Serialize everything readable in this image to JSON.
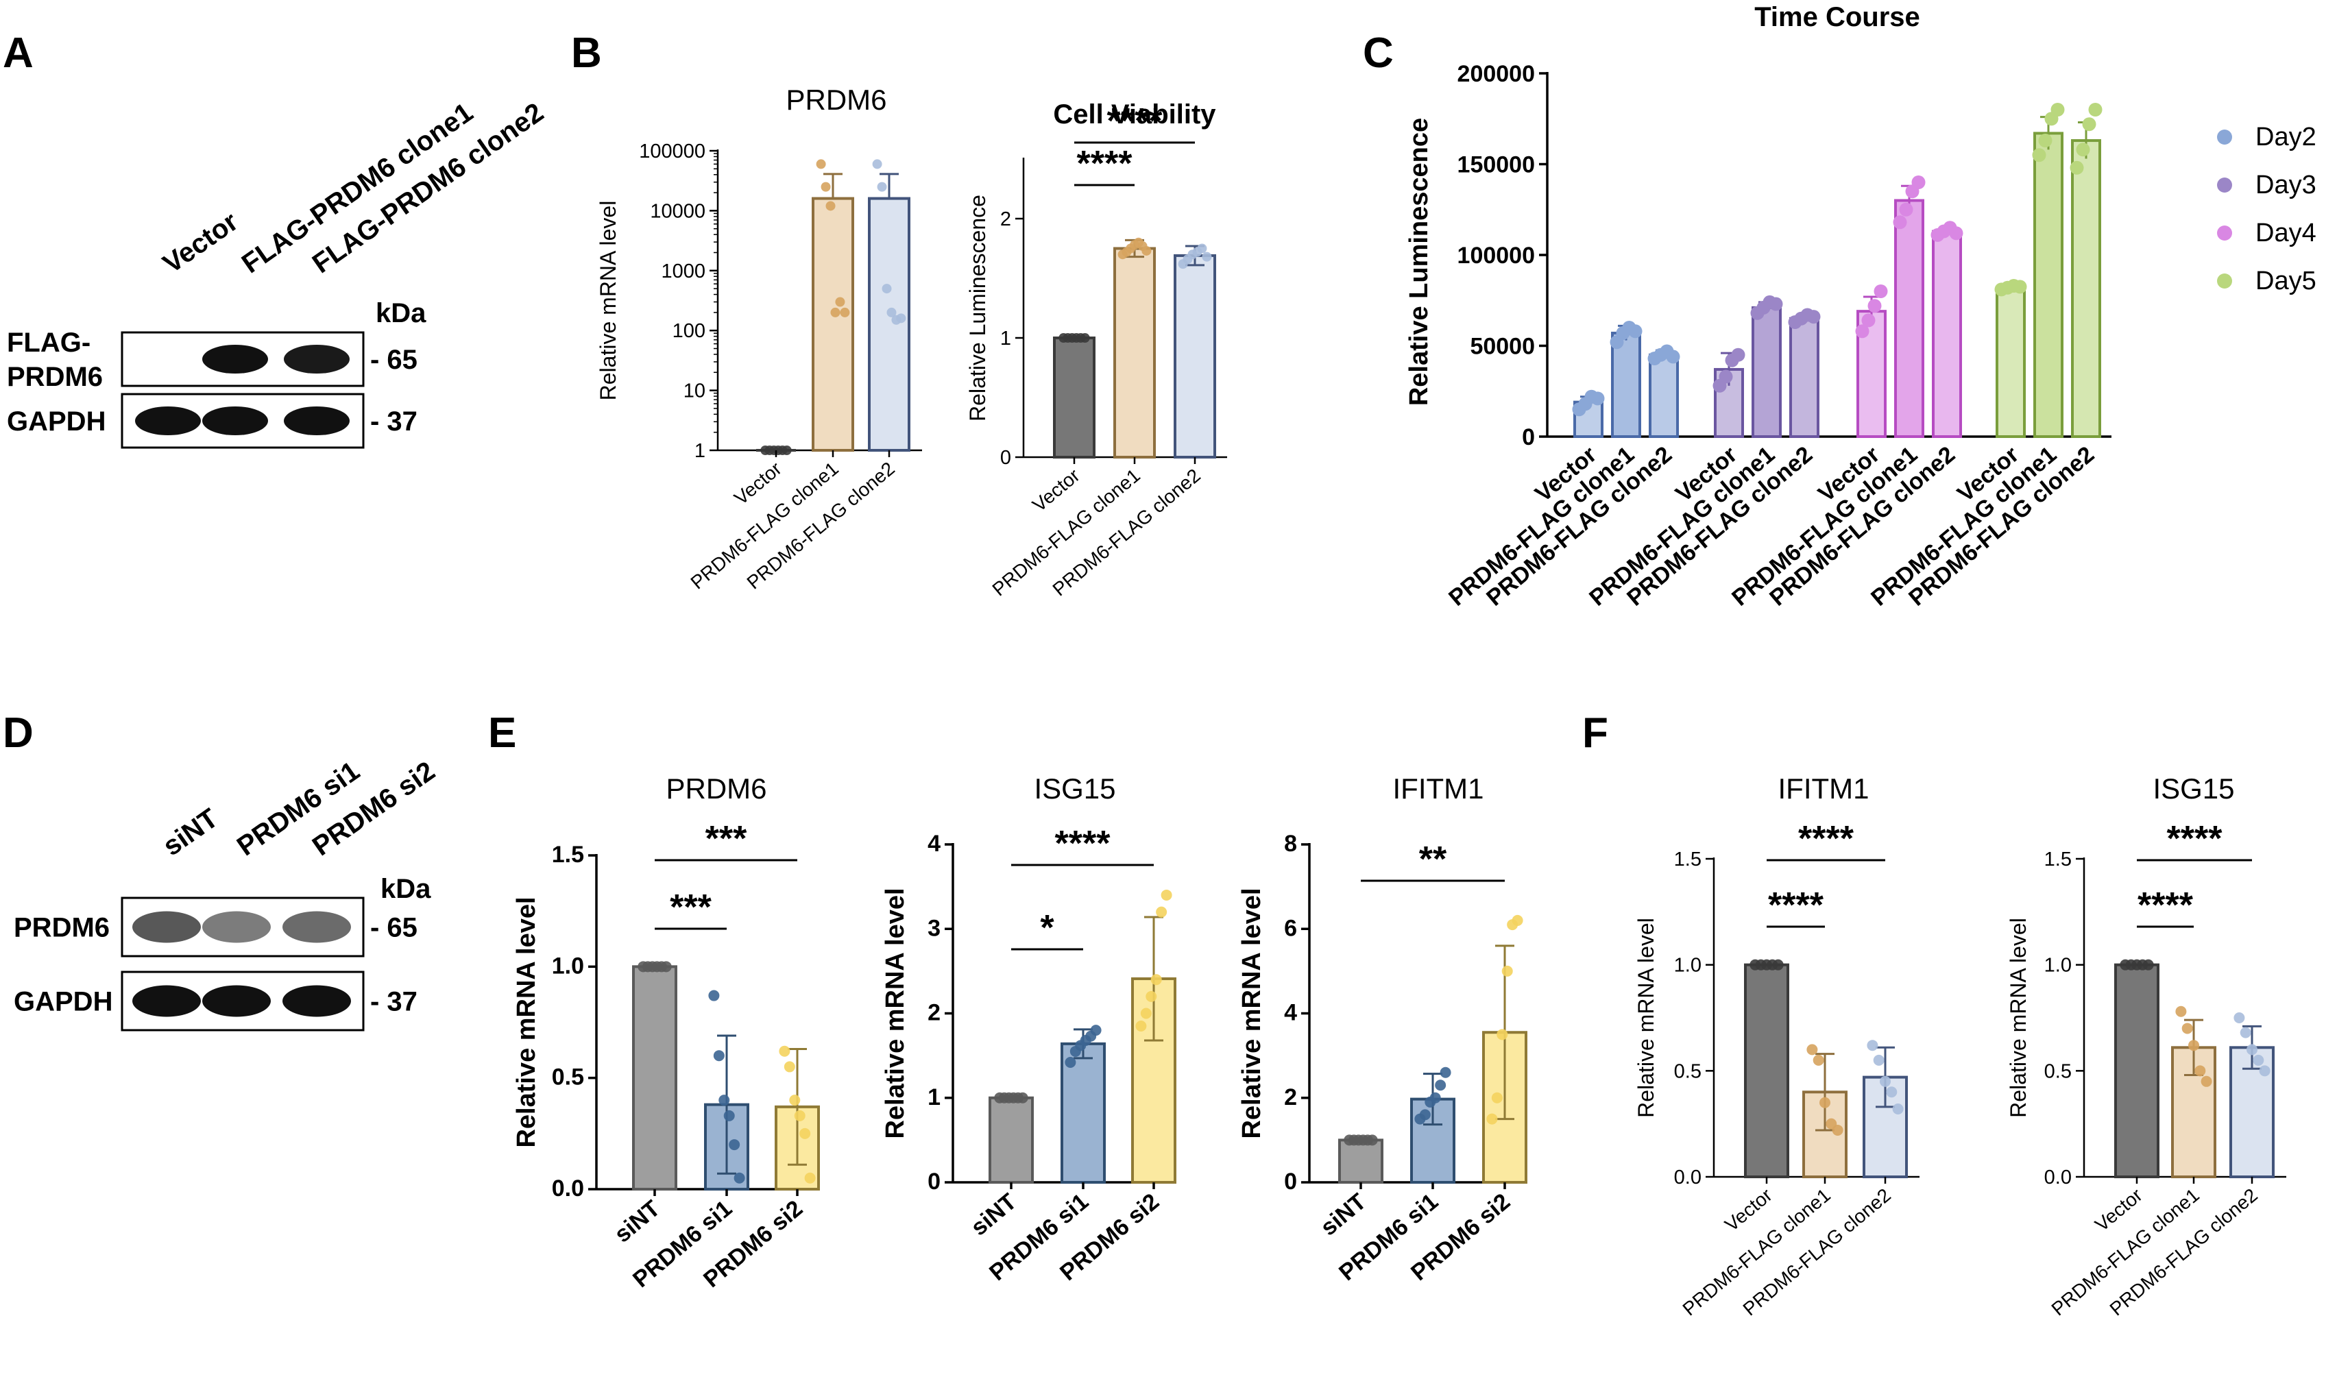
{
  "panels": {
    "A": "A",
    "B": "B",
    "C": "C",
    "D": "D",
    "E": "E",
    "F": "F"
  },
  "blot_A": {
    "lanes": [
      "Vector",
      "FLAG-PRDM6 clone1",
      "FLAG-PRDM6 clone2"
    ],
    "rows": [
      {
        "label": [
          "FLAG-",
          "PRDM6"
        ],
        "marker": "- 65",
        "intensity": [
          0,
          1,
          0.95
        ]
      },
      {
        "label": [
          "GAPDH"
        ],
        "marker": "- 37",
        "intensity": [
          1,
          1,
          1
        ]
      }
    ],
    "kda": "kDa"
  },
  "blot_D": {
    "lanes": [
      "siNT",
      "PRDM6 si1",
      "PRDM6 si2"
    ],
    "rows": [
      {
        "label": [
          "PRDM6"
        ],
        "marker": "- 65",
        "intensity": [
          0.6,
          0.4,
          0.5
        ]
      },
      {
        "label": [
          "GAPDH"
        ],
        "marker": "- 37",
        "intensity": [
          1,
          1,
          1
        ]
      }
    ],
    "kda": "kDa"
  },
  "colors": {
    "gray": "#8a8a8a",
    "tan": "#f0dcc0",
    "lightblue": "#dbe3f0",
    "tanedge": "#8e6f3e",
    "blueedge": "#42547b",
    "day2": "#8aa7d7",
    "day3": "#9b86c7",
    "day4": "#d987e3",
    "day5": "#b9d77d"
  },
  "chart_data": [
    {
      "id": "B1",
      "type": "bar",
      "scale": "log",
      "title": "PRDM6",
      "ylabel": "Relative mRNA level",
      "categories": [
        "Vector",
        "PRDM6-FLAG clone1",
        "PRDM6-FLAG clone2"
      ],
      "values": [
        1,
        16000,
        16000
      ],
      "errors": [
        0,
        25000,
        25000
      ],
      "points": [
        [
          1,
          1,
          1,
          1,
          1,
          1
        ],
        [
          60000,
          25000,
          12000,
          200,
          300,
          200
        ],
        [
          60000,
          25000,
          500,
          200,
          150,
          160
        ]
      ],
      "ylim": [
        1,
        100000
      ],
      "ticks": [
        1,
        10,
        100,
        1000,
        10000,
        100000
      ],
      "tick_labels": [
        "1",
        "10",
        "100",
        "1000",
        "10000",
        "100000"
      ],
      "sig": []
    },
    {
      "id": "B2",
      "type": "bar",
      "title": "Cell Viability",
      "ylabel": "Relative Luminescence",
      "categories": [
        "Vector",
        "PRDM6-FLAG clone1",
        "PRDM6-FLAG clone2"
      ],
      "values": [
        1,
        1.75,
        1.69
      ],
      "errors": [
        0,
        0.07,
        0.08
      ],
      "points": [
        [
          1,
          1,
          1,
          1,
          1,
          1
        ],
        [
          1.7,
          1.72,
          1.75,
          1.78,
          1.8,
          1.77,
          1.73
        ],
        [
          1.62,
          1.66,
          1.7,
          1.72,
          1.75,
          1.68
        ]
      ],
      "ylim": [
        0,
        2.5
      ],
      "ticks": [
        0,
        1,
        2
      ],
      "tick_labels": [
        "0",
        "1",
        "2"
      ],
      "sig": [
        {
          "from": 0,
          "to": 1,
          "label": "****",
          "level": 0
        },
        {
          "from": 0,
          "to": 2,
          "label": "****",
          "level": 1
        }
      ]
    },
    {
      "id": "C",
      "type": "grouped-bar",
      "title": "Time Course",
      "ylabel": "Relative Luminescence",
      "groups": [
        "Day2",
        "Day3",
        "Day4",
        "Day5"
      ],
      "categories": [
        "Vector",
        "PRDM6-FLAG clone1",
        "PRDM6-FLAG clone2"
      ],
      "series": [
        {
          "name": "Day2",
          "values": [
            19000,
            57000,
            45000
          ],
          "errors": [
            3000,
            4000,
            2500
          ],
          "points": [
            [
              15000,
              18000,
              22000,
              21000
            ],
            [
              52000,
              57000,
              60000,
              58000
            ],
            [
              43000,
              45000,
              47000,
              44000
            ]
          ]
        },
        {
          "name": "Day3",
          "values": [
            37000,
            71000,
            65000
          ],
          "errors": [
            9000,
            3000,
            2000
          ],
          "points": [
            [
              28000,
              33000,
              42000,
              45000
            ],
            [
              68000,
              71000,
              74000,
              73000
            ],
            [
              63000,
              65000,
              67000,
              66000
            ]
          ]
        },
        {
          "name": "Day4",
          "values": [
            69000,
            130000,
            113000
          ],
          "errors": [
            8000,
            8000,
            2000
          ],
          "points": [
            [
              58000,
              64000,
              72000,
              80000
            ],
            [
              118000,
              125000,
              135000,
              140000
            ],
            [
              111000,
              113000,
              115000,
              112000
            ]
          ]
        },
        {
          "name": "Day5",
          "values": [
            82000,
            167000,
            163000
          ],
          "errors": [
            1500,
            9000,
            10000
          ],
          "points": [
            [
              81000,
              82000,
              83000,
              82500
            ],
            [
              155000,
              163000,
              175000,
              180000
            ],
            [
              148000,
              158000,
              172000,
              180000
            ]
          ]
        }
      ],
      "ylim": [
        0,
        200000
      ],
      "ticks": [
        0,
        50000,
        100000,
        150000,
        200000
      ],
      "tick_labels": [
        "0",
        "50000",
        "100000",
        "150000",
        "200000"
      ],
      "legend": [
        "Day2",
        "Day3",
        "Day4",
        "Day5"
      ]
    },
    {
      "id": "E1",
      "type": "bar",
      "title": "PRDM6",
      "ylabel": "Relative mRNA level",
      "categories": [
        "siNT",
        "PRDM6 si1",
        "PRDM6 si2"
      ],
      "values": [
        1.0,
        0.38,
        0.37
      ],
      "errors": [
        0,
        0.31,
        0.26
      ],
      "points": [
        [
          1,
          1,
          1,
          1,
          1,
          1
        ],
        [
          0.87,
          0.6,
          0.4,
          0.33,
          0.2,
          0.05
        ],
        [
          0.62,
          0.55,
          0.4,
          0.33,
          0.25,
          0.05
        ]
      ],
      "ylim": [
        0,
        1.5
      ],
      "ticks": [
        0,
        0.5,
        1.0,
        1.5
      ],
      "tick_labels": [
        "0.0",
        "0.5",
        "1.0",
        "1.5"
      ],
      "sig": [
        {
          "from": 0,
          "to": 1,
          "label": "***",
          "level": 0
        },
        {
          "from": 0,
          "to": 2,
          "label": "***",
          "level": 1
        }
      ]
    },
    {
      "id": "E2",
      "type": "bar",
      "title": "ISG15",
      "ylabel": "Relative mRNA level",
      "categories": [
        "siNT",
        "PRDM6 si1",
        "PRDM6 si2"
      ],
      "values": [
        1,
        1.64,
        2.41
      ],
      "errors": [
        0,
        0.17,
        0.73
      ],
      "points": [
        [
          1,
          1,
          1,
          1,
          1,
          1
        ],
        [
          1.42,
          1.55,
          1.62,
          1.68,
          1.73,
          1.8
        ],
        [
          1.85,
          2.0,
          2.2,
          2.4,
          3.2,
          3.4
        ]
      ],
      "ylim": [
        0,
        4
      ],
      "ticks": [
        0,
        1,
        2,
        3,
        4
      ],
      "tick_labels": [
        "0",
        "1",
        "2",
        "3",
        "4"
      ],
      "sig": [
        {
          "from": 0,
          "to": 1,
          "label": "*",
          "level": 0
        },
        {
          "from": 0,
          "to": 2,
          "label": "****",
          "level": 1
        }
      ]
    },
    {
      "id": "E3",
      "type": "bar",
      "title": "IFITM1",
      "ylabel": "Relative mRNA level",
      "categories": [
        "siNT",
        "PRDM6 si1",
        "PRDM6 si2"
      ],
      "values": [
        1,
        1.97,
        3.55
      ],
      "errors": [
        0,
        0.6,
        2.05
      ],
      "points": [
        [
          1,
          1,
          1,
          1,
          1,
          1
        ],
        [
          1.5,
          1.6,
          1.9,
          2.0,
          2.3,
          2.6
        ],
        [
          1.5,
          2.0,
          3.5,
          5.0,
          6.1,
          6.2
        ]
      ],
      "ylim": [
        0,
        8
      ],
      "ticks": [
        0,
        2,
        4,
        6,
        8
      ],
      "tick_labels": [
        "0",
        "2",
        "4",
        "6",
        "8"
      ],
      "sig": [
        {
          "from": 0,
          "to": 2,
          "label": "**",
          "level": 1
        }
      ]
    },
    {
      "id": "F1",
      "type": "bar",
      "title": "IFITM1",
      "ylabel": "Relative mRNA level",
      "categories": [
        "Vector",
        "PRDM6-FLAG clone1",
        "PRDM6-FLAG clone2"
      ],
      "values": [
        1.0,
        0.4,
        0.47
      ],
      "errors": [
        0,
        0.18,
        0.14
      ],
      "points": [
        [
          1,
          1,
          1,
          1,
          1
        ],
        [
          0.6,
          0.55,
          0.35,
          0.25,
          0.22
        ],
        [
          0.62,
          0.55,
          0.45,
          0.4,
          0.32
        ]
      ],
      "ylim": [
        0,
        1.5
      ],
      "ticks": [
        0,
        0.5,
        1.0,
        1.5
      ],
      "tick_labels": [
        "0.0",
        "0.5",
        "1.0",
        "1.5"
      ],
      "sig": [
        {
          "from": 0,
          "to": 1,
          "label": "****",
          "level": 0
        },
        {
          "from": 0,
          "to": 2,
          "label": "****",
          "level": 1
        }
      ]
    },
    {
      "id": "F2",
      "type": "bar",
      "title": "ISG15",
      "ylabel": "Relative mRNA level",
      "categories": [
        "Vector",
        "PRDM6-FLAG clone1",
        "PRDM6-FLAG clone2"
      ],
      "values": [
        1.0,
        0.61,
        0.61
      ],
      "errors": [
        0,
        0.13,
        0.1
      ],
      "points": [
        [
          1,
          1,
          1,
          1,
          1
        ],
        [
          0.78,
          0.7,
          0.62,
          0.5,
          0.45
        ],
        [
          0.75,
          0.68,
          0.6,
          0.55,
          0.5
        ]
      ],
      "ylim": [
        0,
        1.5
      ],
      "ticks": [
        0,
        0.5,
        1.0,
        1.5
      ],
      "tick_labels": [
        "0.0",
        "0.5",
        "1.0",
        "1.5"
      ],
      "sig": [
        {
          "from": 0,
          "to": 1,
          "label": "****",
          "level": 0
        },
        {
          "from": 0,
          "to": 2,
          "label": "****",
          "level": 1
        }
      ]
    }
  ]
}
